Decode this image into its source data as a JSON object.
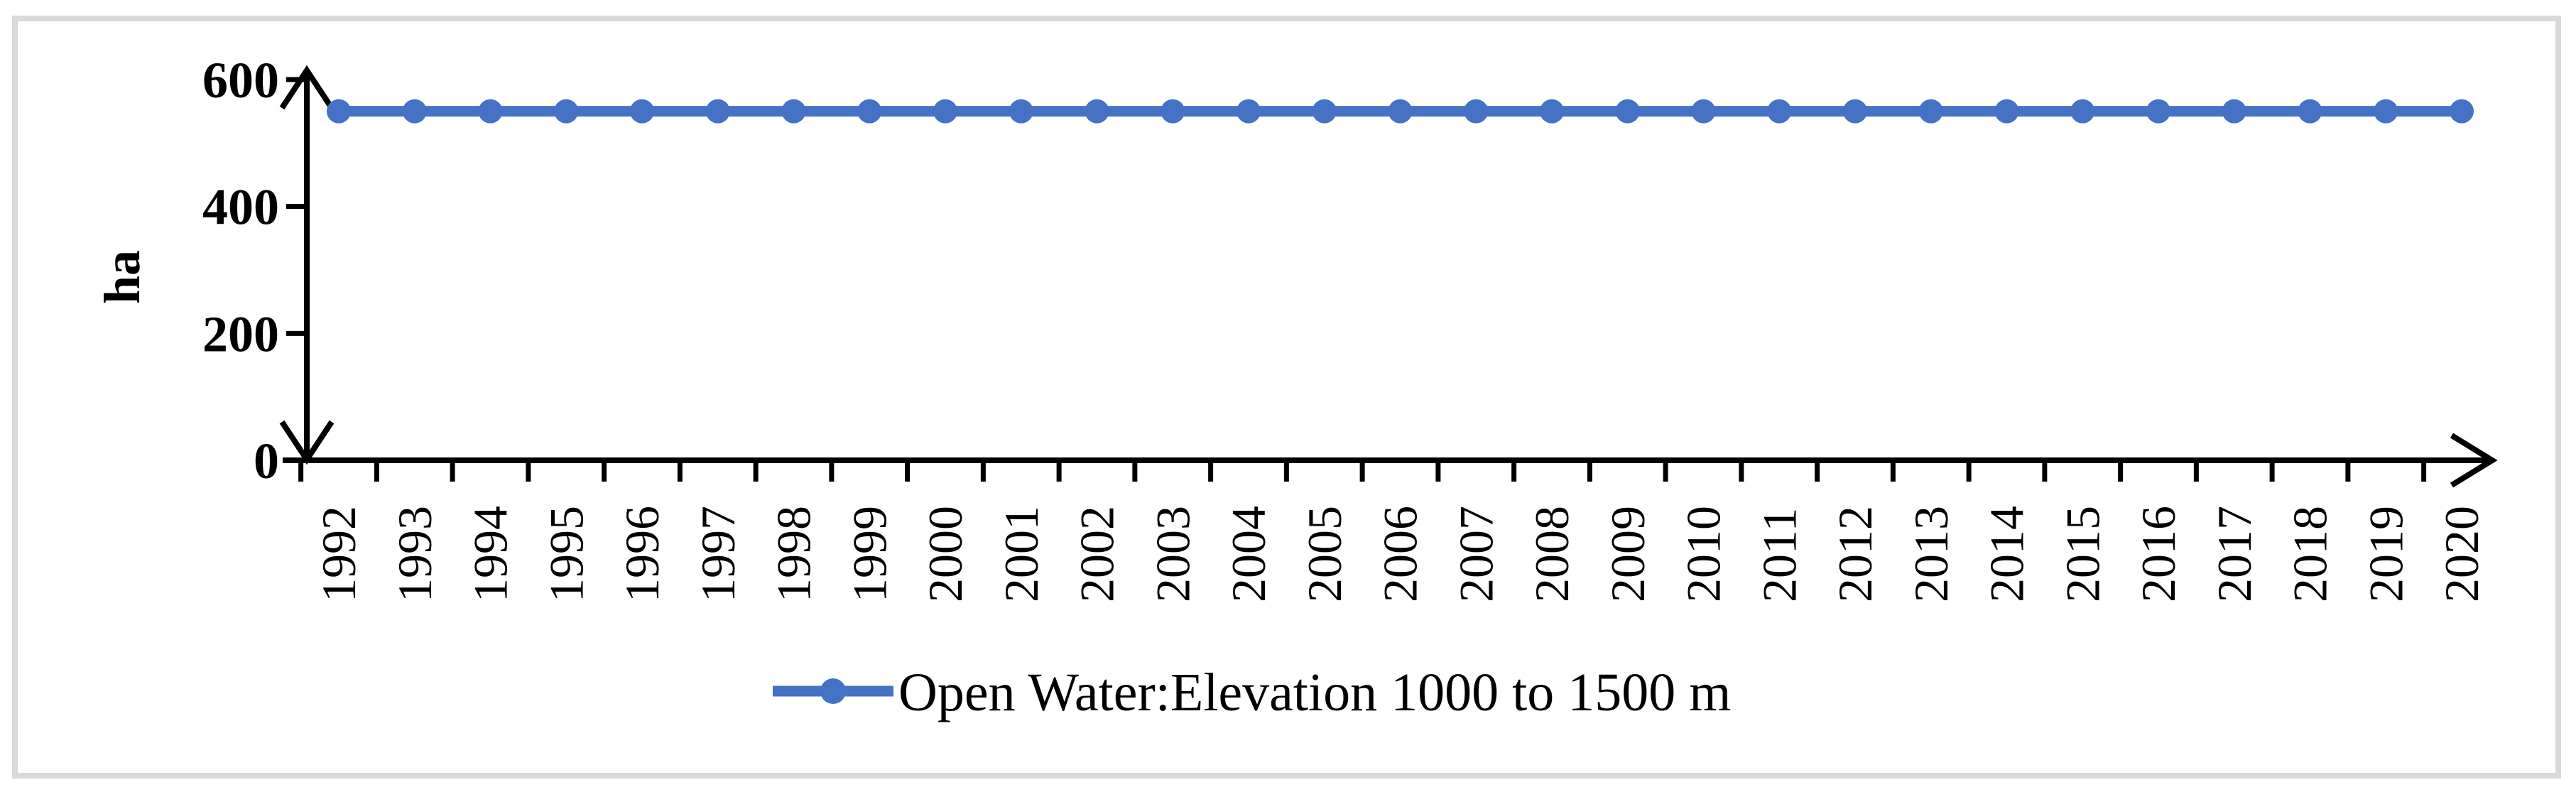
{
  "frame": {
    "border_color": "#d9d9d9",
    "background_color": "#ffffff"
  },
  "chart_data": {
    "type": "line",
    "title": "",
    "xlabel": "",
    "ylabel": "ha",
    "categories": [
      "1992",
      "1993",
      "1994",
      "1995",
      "1996",
      "1997",
      "1998",
      "1999",
      "2000",
      "2001",
      "2002",
      "2003",
      "2004",
      "2005",
      "2006",
      "2007",
      "2008",
      "2009",
      "2010",
      "2011",
      "2012",
      "2013",
      "2014",
      "2015",
      "2016",
      "2017",
      "2018",
      "2019",
      "2020"
    ],
    "series": [
      {
        "name": "Open Water:Elevation 1000 to 1500 m",
        "color": "#4472C4",
        "marker": "circle",
        "values": [
          550,
          550,
          550,
          550,
          550,
          550,
          550,
          550,
          550,
          550,
          550,
          550,
          550,
          550,
          550,
          550,
          550,
          550,
          550,
          550,
          550,
          550,
          550,
          550,
          550,
          550,
          550,
          550,
          550
        ]
      }
    ],
    "ylim": [
      0,
      600
    ],
    "yticks": [
      0,
      200,
      400,
      600
    ],
    "grid": false,
    "legend_position": "bottom-center",
    "axis_style": {
      "y_axis_arrows": "both-ends",
      "x_axis_arrow": "right-end",
      "axis_color": "#000000",
      "x_tick_labels_rotation_deg": -90
    }
  }
}
